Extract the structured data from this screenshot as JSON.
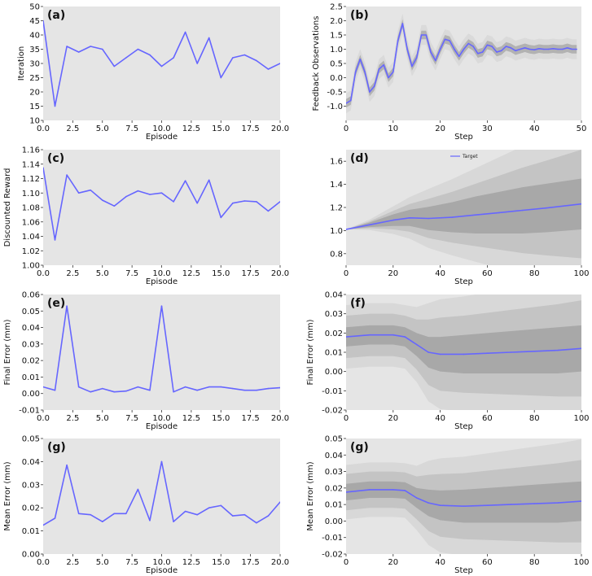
{
  "figure": {
    "background": "#ffffff",
    "panel_bg": "#e5e5e5",
    "line_color": "#6666ff",
    "band_dark": "#a8a8a8",
    "band_mid": "#c4c4c4",
    "band_light": "#d8d8d8"
  },
  "chart_data": [
    {
      "id": "a",
      "type": "line",
      "label": "(a)",
      "xlabel": "Episode",
      "ylabel": "Iteration",
      "xlim": [
        0,
        20
      ],
      "ylim": [
        10,
        50
      ],
      "xticks": [
        0,
        2.5,
        5,
        7.5,
        10,
        12.5,
        15,
        17.5,
        20
      ],
      "xticklabels": [
        "0.0",
        "2.5",
        "5.0",
        "7.5",
        "10.0",
        "12.5",
        "15.0",
        "17.5",
        "20.0"
      ],
      "yticks": [
        10,
        15,
        20,
        25,
        30,
        35,
        40,
        45,
        50
      ],
      "yticklabels": [
        "10",
        "15",
        "20",
        "25",
        "30",
        "35",
        "40",
        "45",
        "50"
      ],
      "x": [
        0,
        1,
        2,
        3,
        4,
        5,
        6,
        7,
        8,
        9,
        10,
        11,
        12,
        13,
        14,
        15,
        16,
        17,
        18,
        19,
        20
      ],
      "y": [
        45,
        15,
        36,
        34,
        36,
        35,
        29,
        32,
        35,
        33,
        29,
        32,
        41,
        30,
        39,
        25,
        32,
        33,
        31,
        28,
        30
      ]
    },
    {
      "id": "b",
      "type": "line",
      "label": "(b)",
      "xlabel": "Step",
      "ylabel": "Feedback Observations",
      "xlim": [
        0,
        50
      ],
      "ylim": [
        -1.5,
        2.5
      ],
      "xticks": [
        0,
        10,
        20,
        30,
        40,
        50
      ],
      "xticklabels": [
        "0",
        "10",
        "20",
        "30",
        "40",
        "50"
      ],
      "yticks": [
        -1.0,
        -0.5,
        0.0,
        0.5,
        1.0,
        1.5,
        2.0,
        2.5
      ],
      "yticklabels": [
        "-1.0",
        "-0.5",
        "0.0",
        "0.5",
        "1.0",
        "1.5",
        "2.0",
        "2.5"
      ],
      "x": [
        0,
        1,
        2,
        3,
        4,
        5,
        6,
        7,
        8,
        9,
        10,
        11,
        12,
        13,
        14,
        15,
        16,
        17,
        18,
        19,
        20,
        21,
        22,
        23,
        24,
        25,
        26,
        27,
        28,
        29,
        30,
        31,
        32,
        33,
        34,
        35,
        36,
        37,
        38,
        39,
        40,
        41,
        42,
        43,
        44,
        45,
        46,
        47,
        48,
        49
      ],
      "y": [
        -0.9,
        -0.8,
        0.2,
        0.65,
        0.2,
        -0.5,
        -0.3,
        0.3,
        0.45,
        0.0,
        0.2,
        1.3,
        1.9,
        1.0,
        0.4,
        0.7,
        1.5,
        1.5,
        0.9,
        0.6,
        1.0,
        1.35,
        1.3,
        1.0,
        0.75,
        1.0,
        1.2,
        1.1,
        0.85,
        0.9,
        1.15,
        1.1,
        0.9,
        0.95,
        1.1,
        1.05,
        0.95,
        1.0,
        1.05,
        1.0,
        0.98,
        1.02,
        1.0,
        1.0,
        1.02,
        1.0,
        1.0,
        1.05,
        1.0,
        1.0
      ],
      "band_halfwidths": [
        0.15,
        0.35
      ]
    },
    {
      "id": "c",
      "type": "line",
      "label": "(c)",
      "xlabel": "Episode",
      "ylabel": "Discounted Reward",
      "xlim": [
        0,
        20
      ],
      "ylim": [
        1.0,
        1.16
      ],
      "xticks": [
        0,
        2.5,
        5,
        7.5,
        10,
        12.5,
        15,
        17.5,
        20
      ],
      "xticklabels": [
        "0.0",
        "2.5",
        "5.0",
        "7.5",
        "10.0",
        "12.5",
        "15.0",
        "17.5",
        "20.0"
      ],
      "yticks": [
        1.0,
        1.02,
        1.04,
        1.06,
        1.08,
        1.1,
        1.12,
        1.14,
        1.16
      ],
      "yticklabels": [
        "1.00",
        "1.02",
        "1.04",
        "1.06",
        "1.08",
        "1.10",
        "1.12",
        "1.14",
        "1.16"
      ],
      "x": [
        0,
        1,
        2,
        3,
        4,
        5,
        6,
        7,
        8,
        9,
        10,
        11,
        12,
        13,
        14,
        15,
        16,
        17,
        18,
        19,
        20
      ],
      "y": [
        1.135,
        1.035,
        1.125,
        1.1,
        1.104,
        1.09,
        1.082,
        1.095,
        1.103,
        1.098,
        1.1,
        1.088,
        1.117,
        1.086,
        1.118,
        1.066,
        1.086,
        1.089,
        1.088,
        1.075,
        1.088
      ]
    },
    {
      "id": "d",
      "type": "line",
      "label": "(d)",
      "xlabel": "Step",
      "ylabel": "",
      "xlim": [
        0,
        100
      ],
      "ylim": [
        0.7,
        1.7
      ],
      "xticks": [
        0,
        20,
        40,
        60,
        80,
        100
      ],
      "xticklabels": [
        "0",
        "20",
        "40",
        "60",
        "80",
        "100"
      ],
      "yticks": [
        0.8,
        1.0,
        1.2,
        1.4,
        1.6
      ],
      "yticklabels": [
        "0.8",
        "1.0",
        "1.2",
        "1.4",
        "1.6"
      ],
      "x": [
        0,
        10,
        20,
        27,
        35,
        45,
        55,
        65,
        75,
        85,
        100
      ],
      "y": [
        1.01,
        1.05,
        1.09,
        1.11,
        1.105,
        1.115,
        1.135,
        1.155,
        1.175,
        1.195,
        1.23
      ],
      "band_inner_halfwidths": [
        0,
        0.02,
        0.05,
        0.07,
        0.1,
        0.13,
        0.16,
        0.18,
        0.2,
        0.21,
        0.22
      ],
      "band_outer_halfwidths": [
        0,
        0.03,
        0.08,
        0.12,
        0.17,
        0.22,
        0.27,
        0.32,
        0.37,
        0.41,
        0.47
      ],
      "legend": "Target"
    },
    {
      "id": "e",
      "type": "line",
      "label": "(e)",
      "xlabel": "Episode",
      "ylabel": "Final Error (mm)",
      "xlim": [
        0,
        20
      ],
      "ylim": [
        -0.01,
        0.06
      ],
      "xticks": [
        0,
        2.5,
        5,
        7.5,
        10,
        12.5,
        15,
        17.5,
        20
      ],
      "xticklabels": [
        "0.0",
        "2.5",
        "5.0",
        "7.5",
        "10.0",
        "12.5",
        "15.0",
        "17.5",
        "20.0"
      ],
      "yticks": [
        -0.01,
        0.0,
        0.01,
        0.02,
        0.03,
        0.04,
        0.05,
        0.06
      ],
      "yticklabels": [
        "-0.01",
        "0.00",
        "0.01",
        "0.02",
        "0.03",
        "0.04",
        "0.05",
        "0.06"
      ],
      "x": [
        0,
        1,
        2,
        3,
        4,
        5,
        6,
        7,
        8,
        9,
        10,
        11,
        12,
        13,
        14,
        15,
        16,
        17,
        18,
        19,
        20
      ],
      "y": [
        0.004,
        0.002,
        0.053,
        0.004,
        0.001,
        0.003,
        0.001,
        0.0015,
        0.004,
        0.002,
        0.053,
        0.001,
        0.004,
        0.002,
        0.004,
        0.004,
        0.003,
        0.002,
        0.002,
        0.003,
        0.0035
      ]
    },
    {
      "id": "f",
      "type": "line",
      "label": "(f)",
      "xlabel": "Step",
      "ylabel": "Final Error (mm)",
      "xlim": [
        0,
        100
      ],
      "ylim": [
        -0.02,
        0.04
      ],
      "xticks": [
        0,
        20,
        40,
        60,
        80,
        100
      ],
      "xticklabels": [
        "0",
        "20",
        "40",
        "60",
        "80",
        "100"
      ],
      "yticks": [
        -0.02,
        -0.01,
        0.0,
        0.01,
        0.02,
        0.03,
        0.04
      ],
      "yticklabels": [
        "-0.02",
        "-0.01",
        "0.00",
        "0.01",
        "0.02",
        "0.03",
        "0.04"
      ],
      "x": [
        0,
        10,
        20,
        25,
        30,
        35,
        40,
        50,
        60,
        70,
        80,
        90,
        100
      ],
      "y": [
        0.018,
        0.019,
        0.019,
        0.018,
        0.014,
        0.01,
        0.009,
        0.009,
        0.0095,
        0.01,
        0.0105,
        0.011,
        0.012
      ],
      "band_inner_halfwidths": [
        0.005,
        0.005,
        0.005,
        0.005,
        0.006,
        0.008,
        0.009,
        0.01,
        0.0105,
        0.011,
        0.0115,
        0.012,
        0.012
      ],
      "band_outer_halfwidths": [
        0.011,
        0.011,
        0.011,
        0.011,
        0.013,
        0.017,
        0.019,
        0.02,
        0.021,
        0.022,
        0.023,
        0.024,
        0.025
      ]
    },
    {
      "id": "g1",
      "type": "line",
      "label": "(g)",
      "xlabel": "Episode",
      "ylabel": "Mean Error (mm)",
      "xlim": [
        0,
        20
      ],
      "ylim": [
        0.0,
        0.05
      ],
      "xticks": [
        0,
        2.5,
        5,
        7.5,
        10,
        12.5,
        15,
        17.5,
        20
      ],
      "xticklabels": [
        "0.0",
        "2.5",
        "5.0",
        "7.5",
        "10.0",
        "12.5",
        "15.0",
        "17.5",
        "20.0"
      ],
      "yticks": [
        0.0,
        0.01,
        0.02,
        0.03,
        0.04,
        0.05
      ],
      "yticklabels": [
        "0.00",
        "0.01",
        "0.02",
        "0.03",
        "0.04",
        "0.05"
      ],
      "x": [
        0,
        1,
        2,
        3,
        4,
        5,
        6,
        7,
        8,
        9,
        10,
        11,
        12,
        13,
        14,
        15,
        16,
        17,
        18,
        19,
        20
      ],
      "y": [
        0.0125,
        0.0155,
        0.0385,
        0.0175,
        0.017,
        0.014,
        0.0175,
        0.0175,
        0.028,
        0.0145,
        0.04,
        0.014,
        0.0185,
        0.017,
        0.02,
        0.021,
        0.0165,
        0.017,
        0.0135,
        0.0165,
        0.0225
      ]
    },
    {
      "id": "g2",
      "type": "line",
      "label": "(g)",
      "xlabel": "Step",
      "ylabel": "Mean Error (mm)",
      "xlim": [
        0,
        100
      ],
      "ylim": [
        -0.02,
        0.05
      ],
      "xticks": [
        0,
        20,
        40,
        60,
        80,
        100
      ],
      "xticklabels": [
        "0",
        "20",
        "40",
        "60",
        "80",
        "100"
      ],
      "yticks": [
        -0.02,
        -0.01,
        0.0,
        0.01,
        0.02,
        0.03,
        0.04,
        0.05
      ],
      "yticklabels": [
        "-0.02",
        "-0.01",
        "0.00",
        "0.01",
        "0.02",
        "0.03",
        "0.04",
        "0.05"
      ],
      "x": [
        0,
        10,
        20,
        25,
        30,
        35,
        40,
        50,
        60,
        70,
        80,
        90,
        100
      ],
      "y": [
        0.0175,
        0.019,
        0.019,
        0.0185,
        0.014,
        0.011,
        0.0095,
        0.009,
        0.0095,
        0.01,
        0.0105,
        0.011,
        0.012
      ],
      "band_inner_halfwidths": [
        0.005,
        0.005,
        0.005,
        0.005,
        0.006,
        0.008,
        0.009,
        0.01,
        0.0105,
        0.011,
        0.0115,
        0.012,
        0.012
      ],
      "band_outer_halfwidths": [
        0.011,
        0.011,
        0.011,
        0.011,
        0.013,
        0.017,
        0.019,
        0.02,
        0.021,
        0.022,
        0.023,
        0.024,
        0.025
      ]
    }
  ]
}
